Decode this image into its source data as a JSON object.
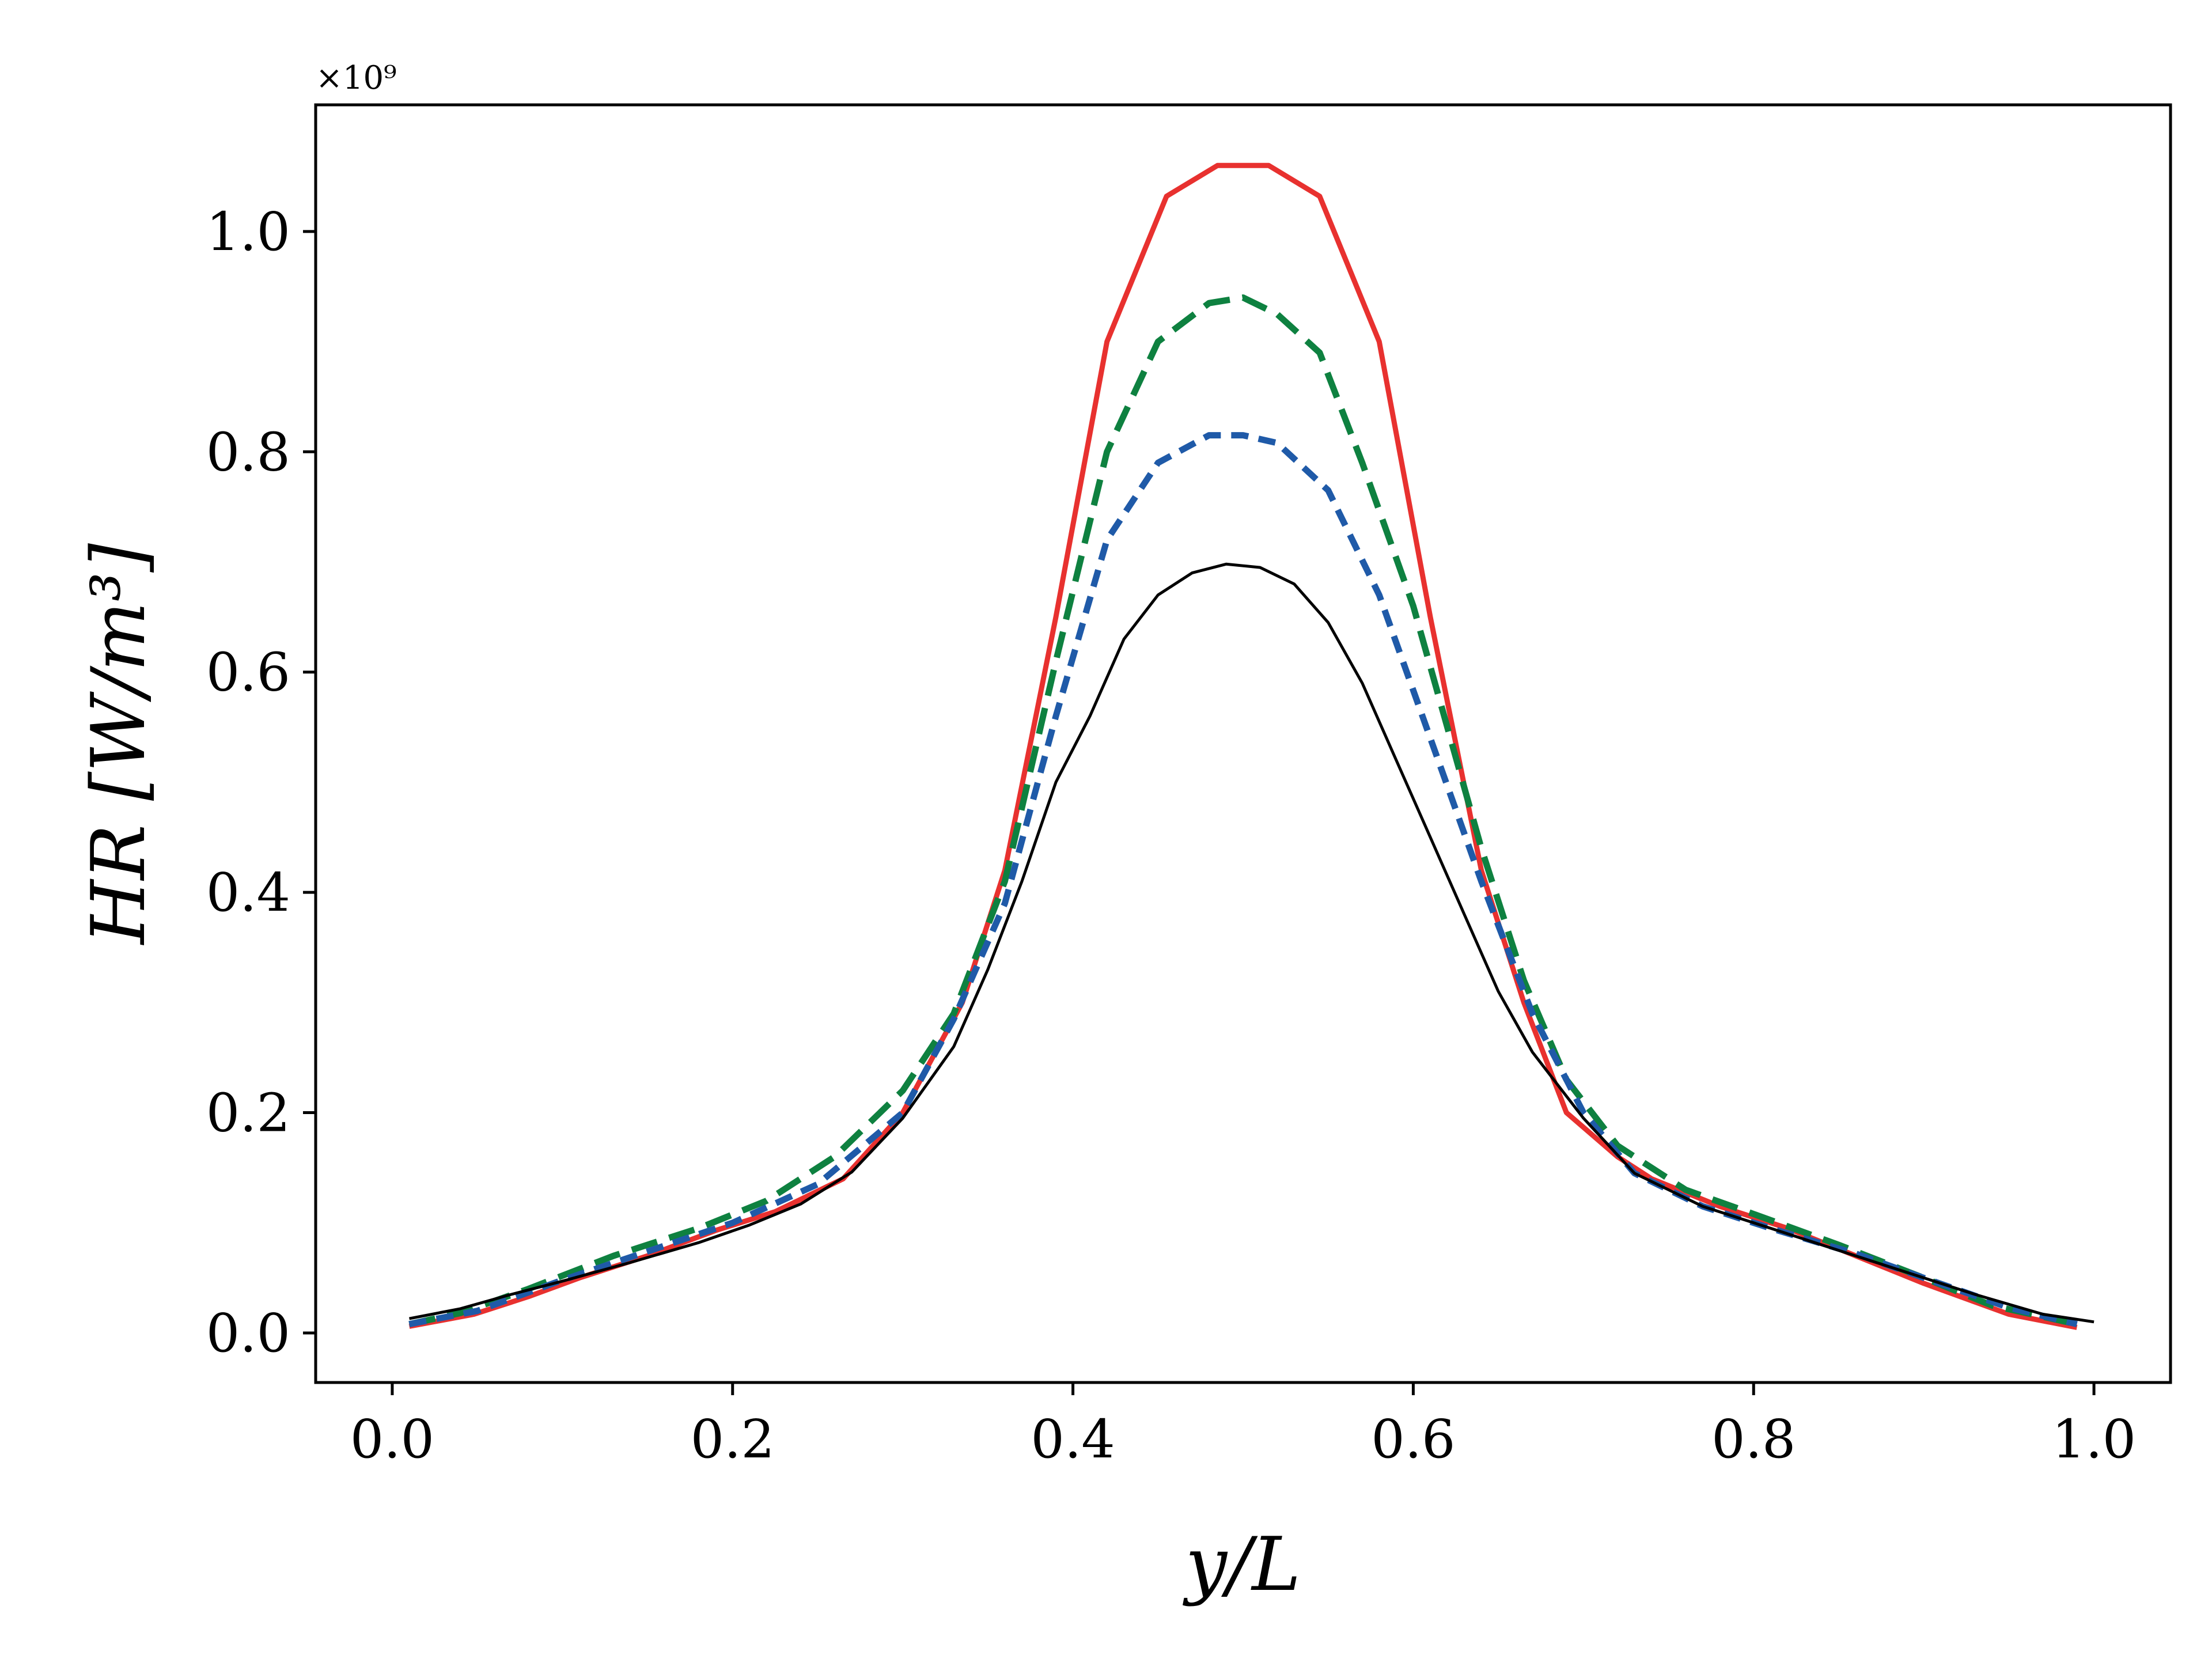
{
  "chart_data": {
    "type": "line",
    "xlabel": "y/L",
    "ylabel": "HR [W/m³]",
    "y_offset_text": "×10⁹",
    "y_scale": 1000000000.0,
    "xlim": [
      -0.045,
      1.045
    ],
    "ylim": [
      -0.045,
      1.115
    ],
    "x_ticks": [
      0.0,
      0.2,
      0.4,
      0.6,
      0.8,
      1.0
    ],
    "x_tick_labels": [
      "0.0",
      "0.2",
      "0.4",
      "0.6",
      "0.8",
      "1.0"
    ],
    "y_ticks": [
      0.0,
      0.2,
      0.4,
      0.6,
      0.8,
      1.0
    ],
    "y_tick_labels": [
      "0.0",
      "0.2",
      "0.4",
      "0.6",
      "0.8",
      "1.0"
    ],
    "grid": false,
    "legend": "none",
    "series": [
      {
        "color": "#e8312f",
        "style": "solid",
        "x": [
          0.01,
          0.048,
          0.08,
          0.11,
          0.15,
          0.19,
          0.225,
          0.265,
          0.3,
          0.335,
          0.36,
          0.39,
          0.42,
          0.455,
          0.485,
          0.515,
          0.545,
          0.58,
          0.61,
          0.64,
          0.665,
          0.69,
          0.72,
          0.74,
          0.78,
          0.82,
          0.86,
          0.9,
          0.95,
          0.99
        ],
        "y": [
          0.006,
          0.017,
          0.033,
          0.05,
          0.07,
          0.093,
          0.11,
          0.14,
          0.2,
          0.3,
          0.42,
          0.65,
          0.9,
          1.032,
          1.06,
          1.06,
          1.032,
          0.9,
          0.65,
          0.42,
          0.3,
          0.2,
          0.16,
          0.14,
          0.115,
          0.095,
          0.07,
          0.045,
          0.017,
          0.005
        ]
      },
      {
        "color": "#0e8140",
        "style": "long-dash",
        "x": [
          0.01,
          0.04,
          0.08,
          0.13,
          0.18,
          0.22,
          0.26,
          0.3,
          0.33,
          0.36,
          0.39,
          0.42,
          0.45,
          0.48,
          0.5,
          0.52,
          0.545,
          0.57,
          0.6,
          0.64,
          0.665,
          0.69,
          0.72,
          0.76,
          0.8,
          0.85,
          0.9,
          0.94,
          0.99
        ],
        "y": [
          0.008,
          0.018,
          0.04,
          0.07,
          0.095,
          0.12,
          0.16,
          0.22,
          0.29,
          0.41,
          0.61,
          0.8,
          0.9,
          0.935,
          0.94,
          0.925,
          0.89,
          0.79,
          0.66,
          0.44,
          0.32,
          0.23,
          0.17,
          0.13,
          0.108,
          0.08,
          0.05,
          0.025,
          0.008
        ]
      },
      {
        "color": "#1f5aa8",
        "style": "short-dash",
        "x": [
          0.01,
          0.05,
          0.1,
          0.15,
          0.2,
          0.25,
          0.3,
          0.33,
          0.36,
          0.39,
          0.42,
          0.45,
          0.48,
          0.5,
          0.52,
          0.55,
          0.58,
          0.61,
          0.64,
          0.67,
          0.7,
          0.73,
          0.77,
          0.81,
          0.86,
          0.9,
          0.95,
          0.99
        ],
        "y": [
          0.008,
          0.02,
          0.048,
          0.074,
          0.1,
          0.135,
          0.2,
          0.285,
          0.39,
          0.56,
          0.72,
          0.79,
          0.815,
          0.815,
          0.808,
          0.765,
          0.67,
          0.54,
          0.41,
          0.29,
          0.2,
          0.145,
          0.115,
          0.095,
          0.072,
          0.05,
          0.023,
          0.008
        ]
      },
      {
        "color": "#000000",
        "style": "solid-thin",
        "x": [
          0.01,
          0.04,
          0.07,
          0.1,
          0.14,
          0.18,
          0.21,
          0.24,
          0.27,
          0.3,
          0.33,
          0.35,
          0.37,
          0.39,
          0.41,
          0.43,
          0.45,
          0.47,
          0.49,
          0.51,
          0.53,
          0.55,
          0.57,
          0.59,
          0.61,
          0.63,
          0.65,
          0.67,
          0.7,
          0.73,
          0.77,
          0.81,
          0.85,
          0.89,
          0.93,
          0.97,
          1.0
        ],
        "y": [
          0.013,
          0.022,
          0.035,
          0.047,
          0.064,
          0.082,
          0.098,
          0.117,
          0.146,
          0.195,
          0.26,
          0.33,
          0.41,
          0.5,
          0.56,
          0.63,
          0.67,
          0.69,
          0.698,
          0.695,
          0.68,
          0.645,
          0.59,
          0.52,
          0.45,
          0.38,
          0.31,
          0.255,
          0.195,
          0.145,
          0.115,
          0.095,
          0.075,
          0.055,
          0.035,
          0.017,
          0.01
        ]
      }
    ]
  }
}
